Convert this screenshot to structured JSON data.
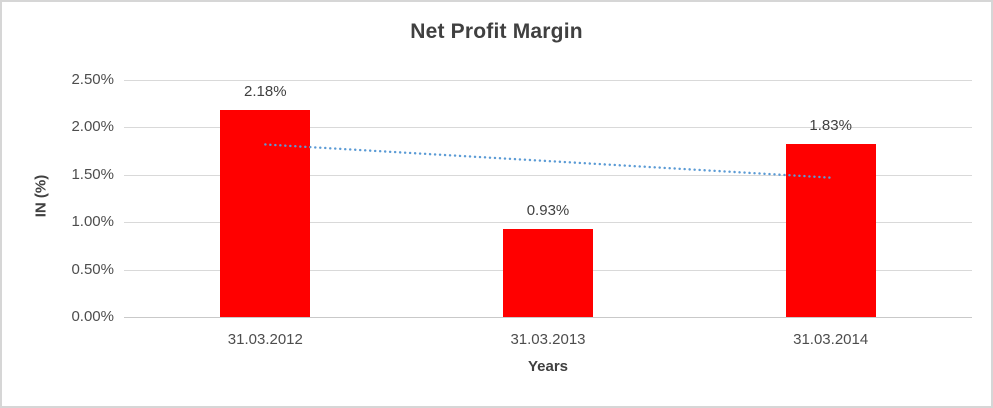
{
  "chart_data": {
    "type": "bar",
    "title": "Net Profit Margin",
    "categories": [
      "31.03.2012",
      "31.03.2013",
      "31.03.2014"
    ],
    "values": [
      2.18,
      0.93,
      1.83
    ],
    "data_labels": [
      "2.18%",
      "0.93%",
      "1.83%"
    ],
    "xlabel": "Years",
    "ylabel": "IN (%)",
    "ylim": [
      0,
      2.5
    ],
    "ytick_step": 0.5,
    "ytick_labels": [
      "0.00%",
      "0.50%",
      "1.00%",
      "1.50%",
      "2.00%",
      "2.50%"
    ],
    "grid": true,
    "legend": "none",
    "bar_color": "#ff0000",
    "trendline": {
      "type": "linear",
      "style": "dotted",
      "color": "#5b9bd5",
      "start_value": 1.82,
      "end_value": 1.47
    }
  },
  "colors": {
    "title_text": "#404040",
    "tick_text": "#4d4d4d",
    "gridline": "#d9d9d9",
    "frame_border": "#d6d6d6",
    "background": "#ffffff"
  }
}
